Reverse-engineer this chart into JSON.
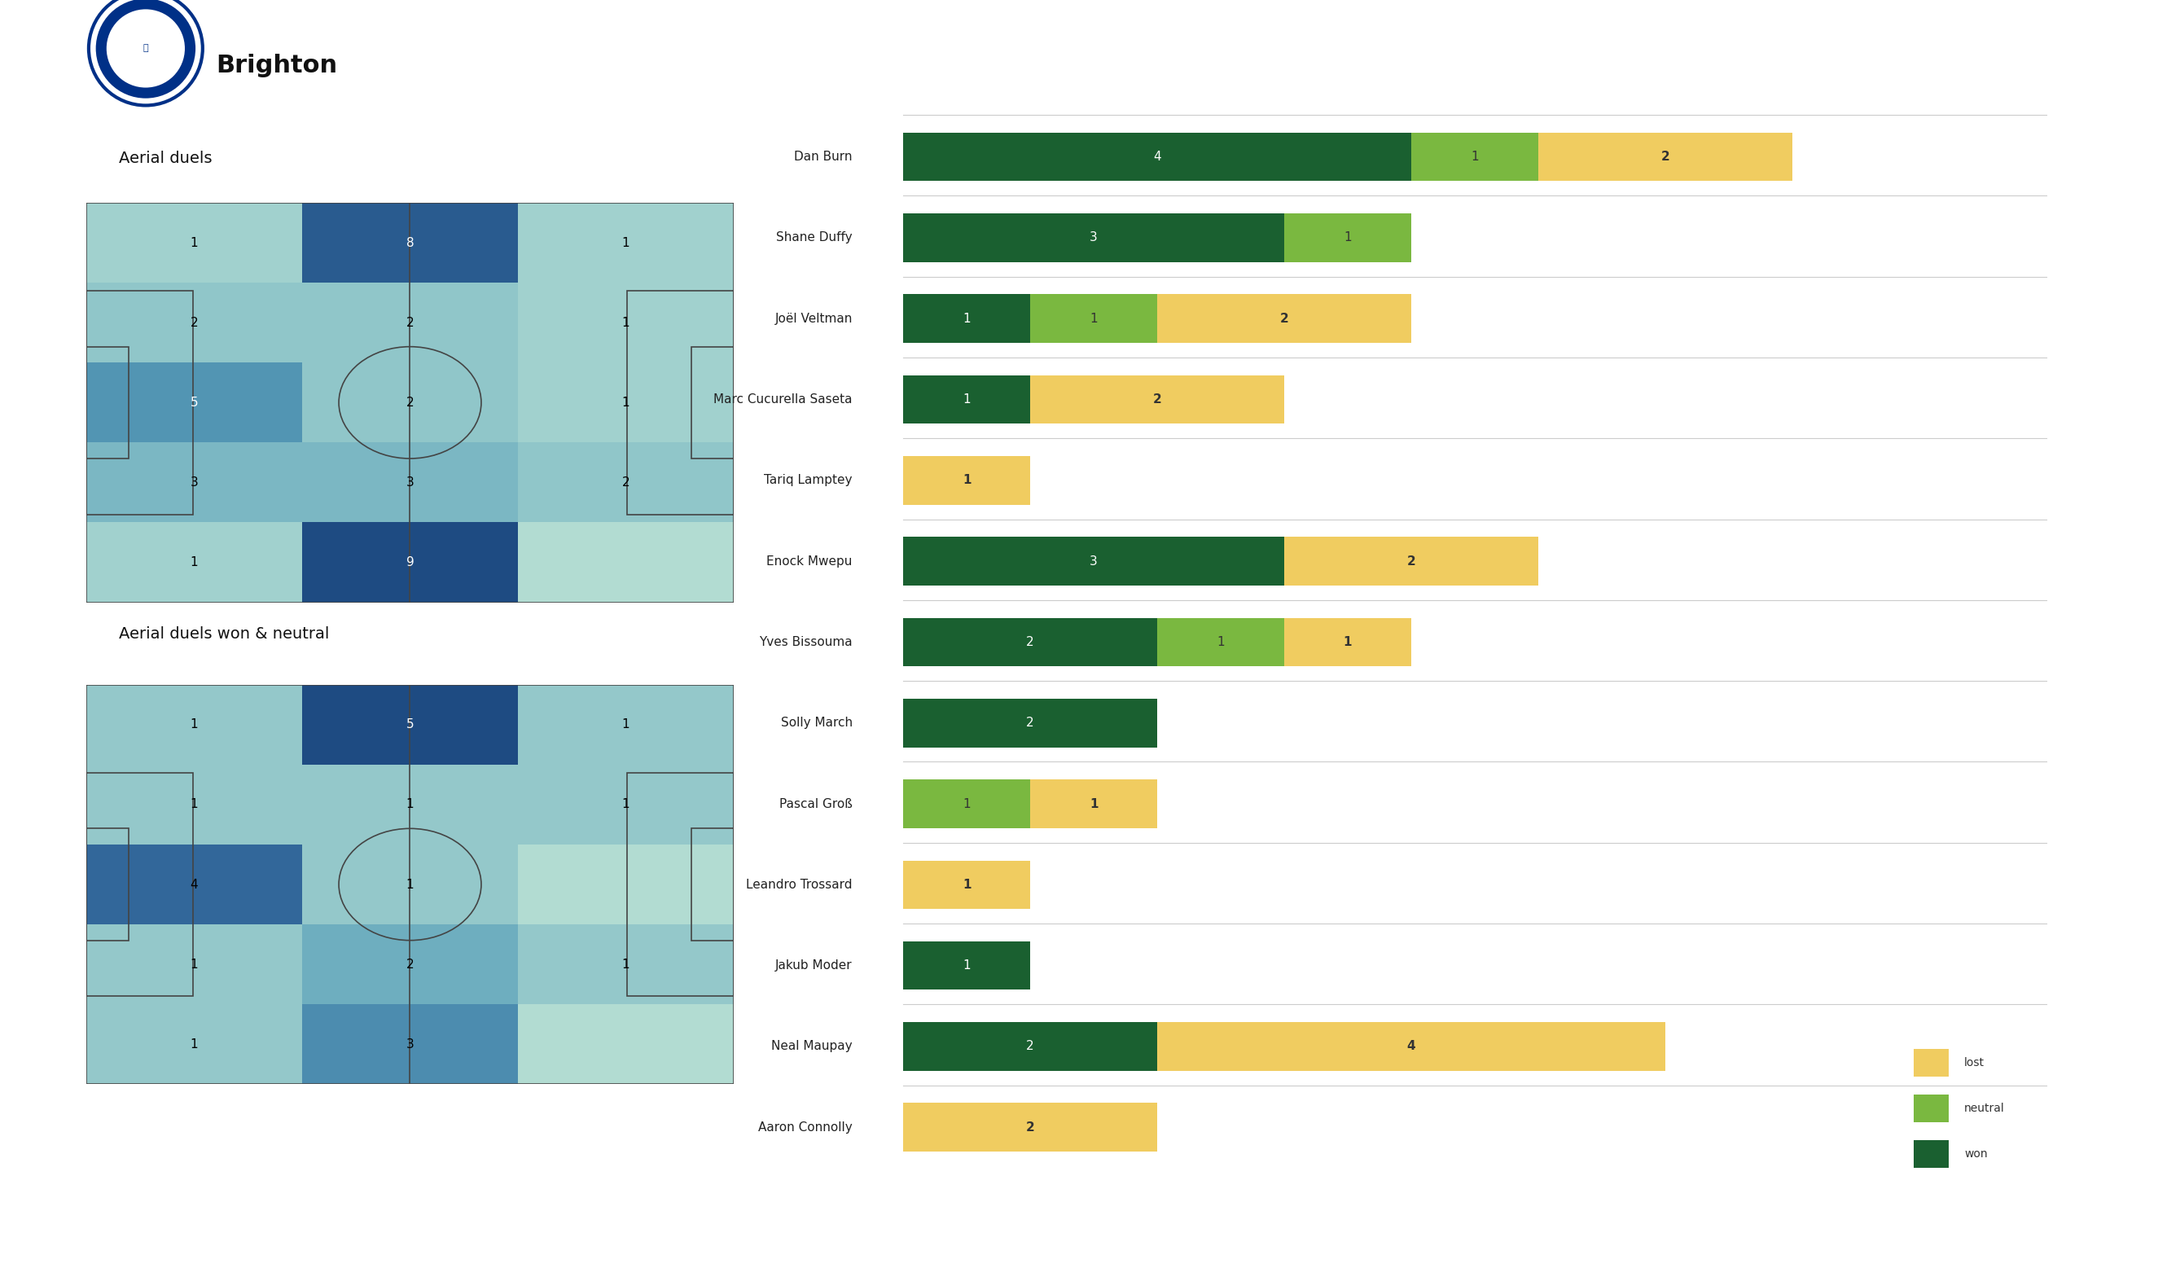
{
  "title": "Brighton",
  "bg_color": "#ffffff",
  "heatmap_title1": "Aerial duels",
  "heatmap_title2": "Aerial duels won & neutral",
  "heatmap1_grid": [
    [
      1,
      8,
      1
    ],
    [
      2,
      2,
      1
    ],
    [
      5,
      2,
      1
    ],
    [
      3,
      3,
      2
    ],
    [
      1,
      9,
      0
    ]
  ],
  "heatmap2_grid": [
    [
      1,
      5,
      1
    ],
    [
      1,
      1,
      1
    ],
    [
      4,
      1,
      0
    ],
    [
      1,
      2,
      1
    ],
    [
      1,
      3,
      0
    ]
  ],
  "players": [
    "Dan Burn",
    "Shane Duffy",
    "Joël Veltman",
    "Marc Cucurella Saseta",
    "Tariq Lamptey",
    "Enock Mwepu",
    "Yves Bissouma",
    "Solly March",
    "Pascal Groß",
    "Leandro Trossard",
    "Jakub Moder",
    "Neal Maupay",
    "Aaron Connolly"
  ],
  "won_values": [
    4,
    3,
    1,
    1,
    0,
    3,
    2,
    2,
    0,
    0,
    1,
    2,
    0
  ],
  "neutral_values": [
    1,
    1,
    1,
    0,
    0,
    0,
    1,
    0,
    1,
    0,
    0,
    0,
    0
  ],
  "lost_values": [
    2,
    0,
    2,
    2,
    1,
    2,
    1,
    0,
    1,
    1,
    0,
    4,
    2
  ],
  "won_color": "#1a6030",
  "neutral_color": "#7ab840",
  "lost_color": "#f0cc60",
  "separator_color": "#cccccc",
  "pitch_line_color": "#444444",
  "heatmap_colors_5": [
    [
      178,
      220,
      210
    ],
    [
      140,
      195,
      200
    ],
    [
      90,
      160,
      185
    ],
    [
      55,
      110,
      160
    ],
    [
      30,
      75,
      130
    ]
  ]
}
